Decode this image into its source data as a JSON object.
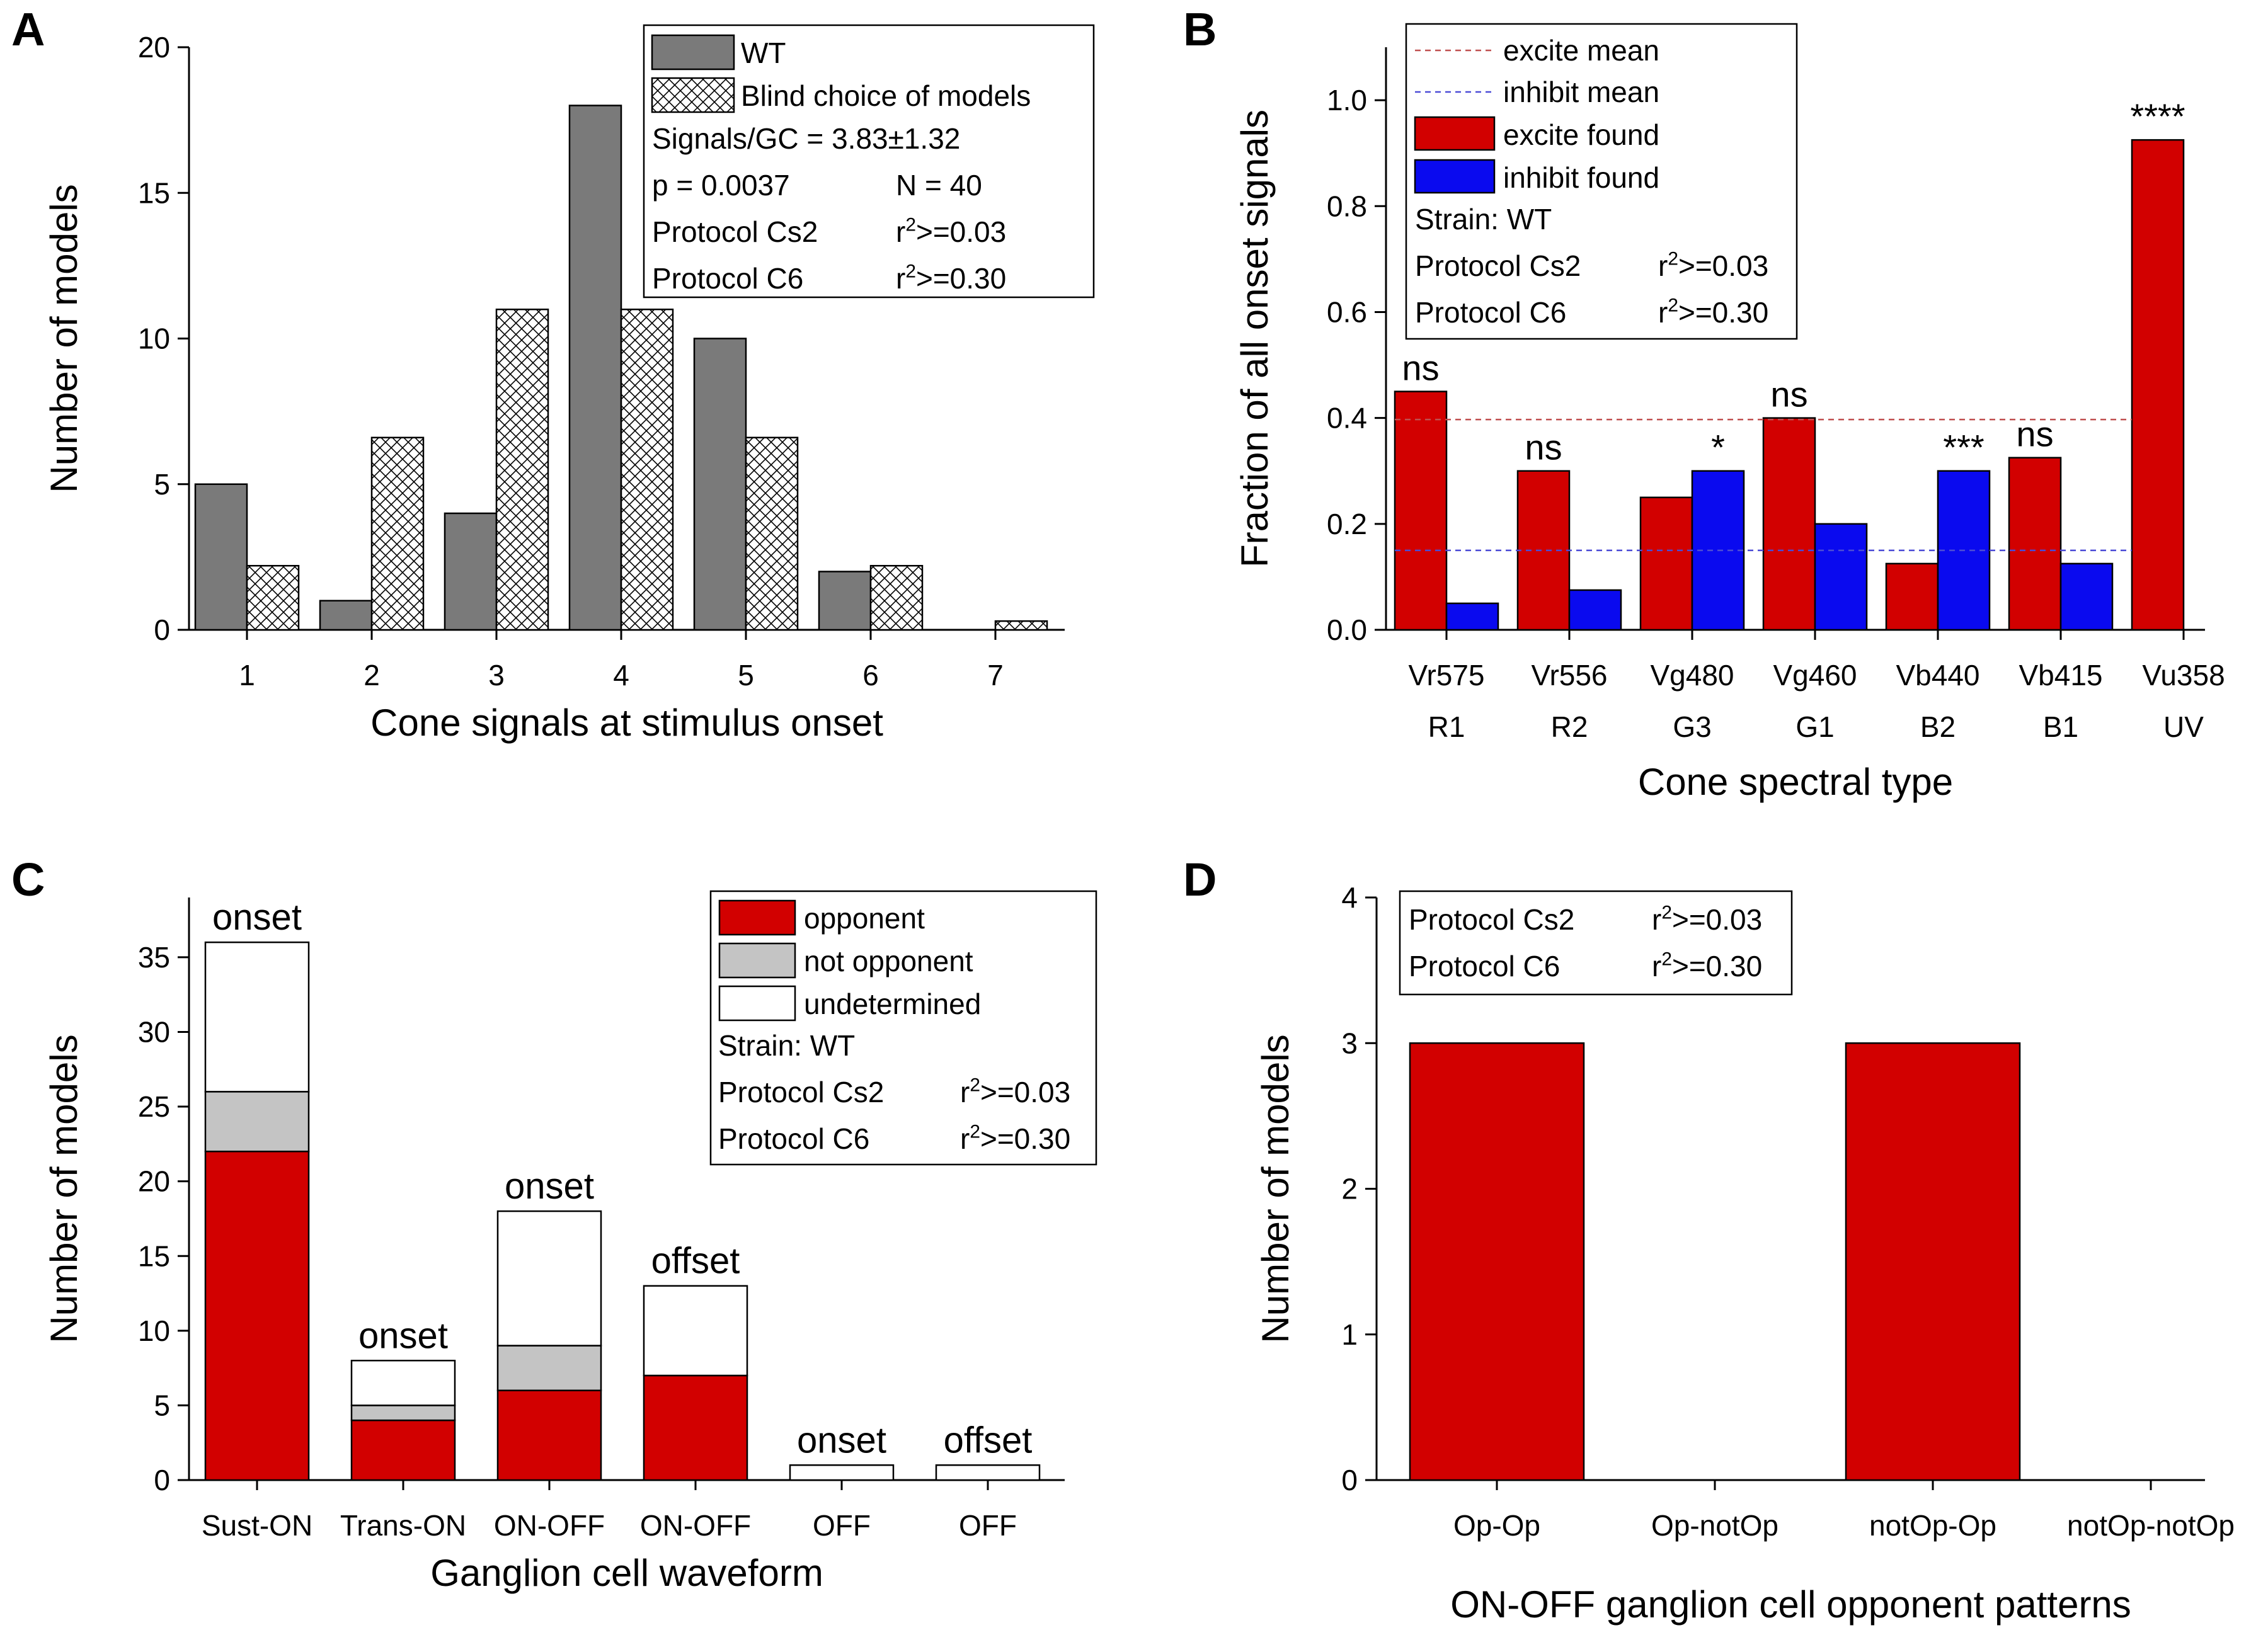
{
  "colors": {
    "wt_gray": "#7a7a7a",
    "opponent_red": "#d20000",
    "not_opponent_gray": "#c4c4c4",
    "undetermined_white": "#ffffff",
    "excite_red": "#d20000",
    "inhibit_blue": "#0a0aef",
    "excite_mean_line": "#c05050",
    "inhibit_mean_line": "#4b4bd6"
  },
  "chart_data": [
    {
      "id": "A",
      "type": "bar",
      "panel_label": "A",
      "xlabel": "Cone signals at stimulus onset",
      "ylabel": "Number of models",
      "categories": [
        "1",
        "2",
        "3",
        "4",
        "5",
        "6",
        "7"
      ],
      "ylim": [
        0,
        20
      ],
      "yticks": [
        0,
        5,
        10,
        15,
        20
      ],
      "series": [
        {
          "name": "WT",
          "style": "solid-gray",
          "values": [
            5,
            1,
            4,
            18,
            10,
            2,
            0
          ]
        },
        {
          "name": "Blind choice of models",
          "style": "crosshatch",
          "values": [
            2.2,
            6.6,
            11,
            11,
            6.6,
            2.2,
            0.3
          ]
        }
      ],
      "legend": {
        "position": "top-right",
        "lines": [
          {
            "left": "Signals/GC = 3.83±1.32",
            "right": ""
          },
          {
            "left": "p = 0.0037",
            "right": "N = 40"
          },
          {
            "left": "Protocol Cs2",
            "right_r": "r",
            "right_exp": "2",
            "right_tail": ">=0.03"
          },
          {
            "left": "Protocol C6",
            "right_r": "r",
            "right_exp": "2",
            "right_tail": ">=0.30"
          }
        ]
      }
    },
    {
      "id": "B",
      "type": "bar",
      "panel_label": "B",
      "xlabel": "Cone spectral type",
      "ylabel": "Fraction of all onset signals",
      "categories": [
        {
          "line1": "Vr575",
          "line2": "R1"
        },
        {
          "line1": "Vr556",
          "line2": "R2"
        },
        {
          "line1": "Vg480",
          "line2": "G3"
        },
        {
          "line1": "Vg460",
          "line2": "G1"
        },
        {
          "line1": "Vb440",
          "line2": "B2"
        },
        {
          "line1": "Vb415",
          "line2": "B1"
        },
        {
          "line1": "Vu358",
          "line2": "UV"
        }
      ],
      "ylim": [
        0,
        1.1
      ],
      "yticks": [
        "0.0",
        "0.2",
        "0.4",
        "0.6",
        "0.8",
        "1.0"
      ],
      "series": [
        {
          "name": "excite found",
          "values": [
            0.45,
            0.3,
            0.25,
            0.4,
            0.125,
            0.325,
            0.925
          ]
        },
        {
          "name": "inhibit found",
          "values": [
            0.05,
            0.075,
            0.3,
            0.2,
            0.3,
            0.125,
            0
          ]
        }
      ],
      "reference_lines": [
        {
          "name": "excite mean",
          "value": 0.397,
          "style": "dashed"
        },
        {
          "name": "inhibit mean",
          "value": 0.15,
          "style": "dashed"
        }
      ],
      "significance": [
        "ns",
        "ns",
        "*",
        "ns",
        "***",
        "ns",
        "****"
      ],
      "legend": {
        "position": "top-left",
        "lines": [
          {
            "left": "Strain: WT",
            "right": ""
          },
          {
            "left": "Protocol Cs2",
            "right_r": "r",
            "right_exp": "2",
            "right_tail": ">=0.03"
          },
          {
            "left": "Protocol C6",
            "right_r": "r",
            "right_exp": "2",
            "right_tail": ">=0.30"
          }
        ]
      }
    },
    {
      "id": "C",
      "type": "bar",
      "stacked": true,
      "panel_label": "C",
      "xlabel": "Ganglion cell waveform",
      "ylabel": "Number of models",
      "categories": [
        "Sust-ON",
        "Trans-ON",
        "ON-OFF",
        "ON-OFF",
        "OFF",
        "OFF"
      ],
      "bar_labels": [
        "onset",
        "onset",
        "onset",
        "offset",
        "onset",
        "offset"
      ],
      "ylim": [
        0,
        39
      ],
      "yticks": [
        0,
        5,
        10,
        15,
        20,
        25,
        30,
        35
      ],
      "series": [
        {
          "name": "opponent",
          "values": [
            22,
            4,
            6,
            7,
            0,
            0
          ]
        },
        {
          "name": "not opponent",
          "values": [
            4,
            1,
            3,
            0,
            0,
            0
          ]
        },
        {
          "name": "undetermined",
          "values": [
            10,
            3,
            9,
            6,
            1,
            1
          ]
        }
      ],
      "legend": {
        "position": "top-right",
        "lines": [
          {
            "left": "Strain: WT",
            "right": ""
          },
          {
            "left": "Protocol Cs2",
            "right_r": "r",
            "right_exp": "2",
            "right_tail": ">=0.03"
          },
          {
            "left": "Protocol C6",
            "right_r": "r",
            "right_exp": "2",
            "right_tail": ">=0.30"
          }
        ]
      }
    },
    {
      "id": "D",
      "type": "bar",
      "panel_label": "D",
      "xlabel": "ON-OFF ganglion cell opponent patterns",
      "ylabel": "Number of models",
      "categories": [
        "Op-Op",
        "Op-notOp",
        "notOp-Op",
        "notOp-notOp"
      ],
      "ylim": [
        0,
        4
      ],
      "yticks": [
        0,
        1,
        2,
        3,
        4
      ],
      "series": [
        {
          "name": "",
          "values": [
            3,
            0,
            3,
            0
          ]
        }
      ],
      "legend": {
        "position": "top-left",
        "lines": [
          {
            "left": "Protocol Cs2",
            "right_r": "r",
            "right_exp": "2",
            "right_tail": ">=0.03"
          },
          {
            "left": "Protocol C6",
            "right_r": "r",
            "right_exp": "2",
            "right_tail": ">=0.30"
          }
        ]
      }
    }
  ]
}
